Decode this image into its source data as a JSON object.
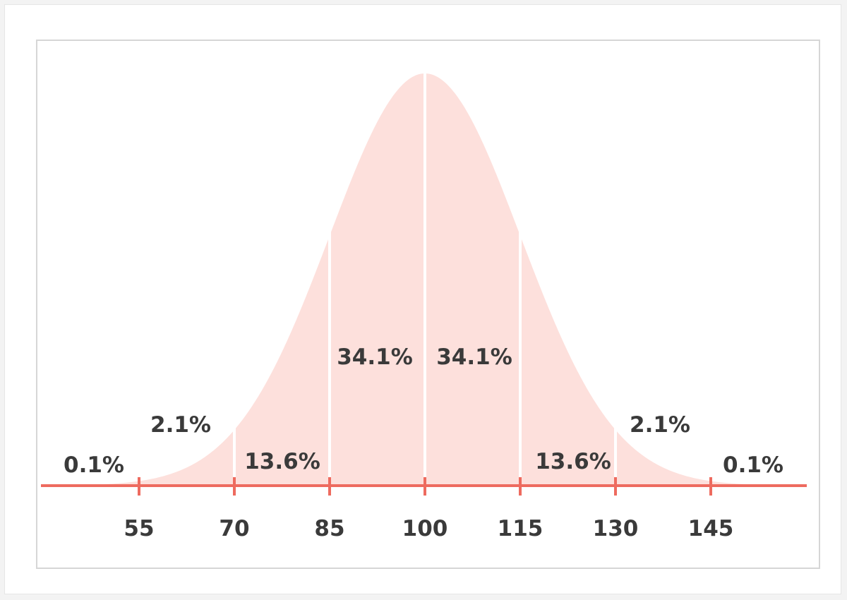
{
  "chart_data": {
    "type": "area",
    "distribution": "normal",
    "mean": 100,
    "sd": 15,
    "xlim": [
      40,
      160
    ],
    "x_ticks": [
      55,
      70,
      85,
      100,
      115,
      130,
      145
    ],
    "tick_labels": [
      "55",
      "70",
      "85",
      "100",
      "115",
      "130",
      "145"
    ],
    "segments": [
      {
        "from": 40,
        "to": 55,
        "label": "0.1%"
      },
      {
        "from": 55,
        "to": 70,
        "label": "2.1%"
      },
      {
        "from": 70,
        "to": 85,
        "label": "13.6%"
      },
      {
        "from": 85,
        "to": 100,
        "label": "34.1%"
      },
      {
        "from": 100,
        "to": 115,
        "label": "34.1%"
      },
      {
        "from": 115,
        "to": 130,
        "label": "13.6%"
      },
      {
        "from": 130,
        "to": 145,
        "label": "2.1%"
      },
      {
        "from": 145,
        "to": 160,
        "label": "0.1%"
      }
    ],
    "title": "",
    "xlabel": "",
    "ylabel": "",
    "grid": false,
    "legend": "none"
  },
  "colors": {
    "curve_fill": "#fde0dc",
    "axis": "#ee6b5f",
    "divider": "#ffffff",
    "text": "#3a3a3a"
  }
}
